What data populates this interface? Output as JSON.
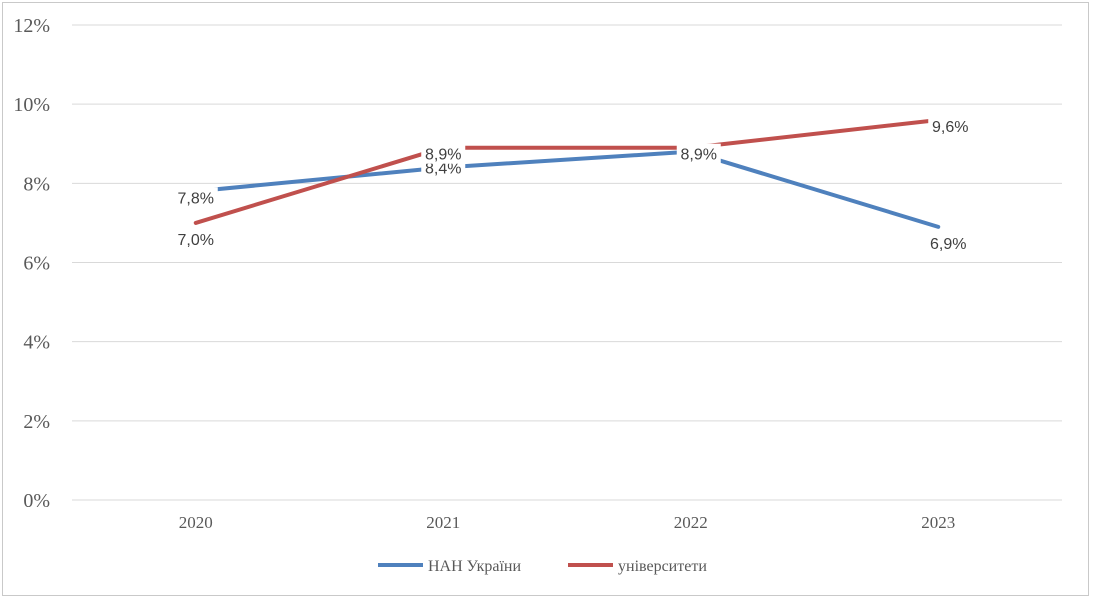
{
  "chart_data": {
    "type": "line",
    "categories": [
      "2020",
      "2021",
      "2022",
      "2023"
    ],
    "ylim": [
      0,
      12
    ],
    "yticks": [
      "0%",
      "2%",
      "4%",
      "6%",
      "8%",
      "10%",
      "12%"
    ],
    "ytick_values": [
      0,
      2,
      4,
      6,
      8,
      10,
      12
    ],
    "grid": true,
    "legend_position": "bottom",
    "series": [
      {
        "name": "НАН України",
        "color": "#4f81bd",
        "values": [
          7.8,
          8.4,
          8.8,
          6.9
        ],
        "labels": [
          "7,8%",
          "8,4%",
          "",
          "6,9%"
        ]
      },
      {
        "name": "університети",
        "color": "#c0504d",
        "values": [
          7.0,
          8.9,
          8.9,
          9.6
        ],
        "labels": [
          "7,0%",
          "8,9%",
          "8,9%",
          "9,6%"
        ]
      }
    ]
  }
}
